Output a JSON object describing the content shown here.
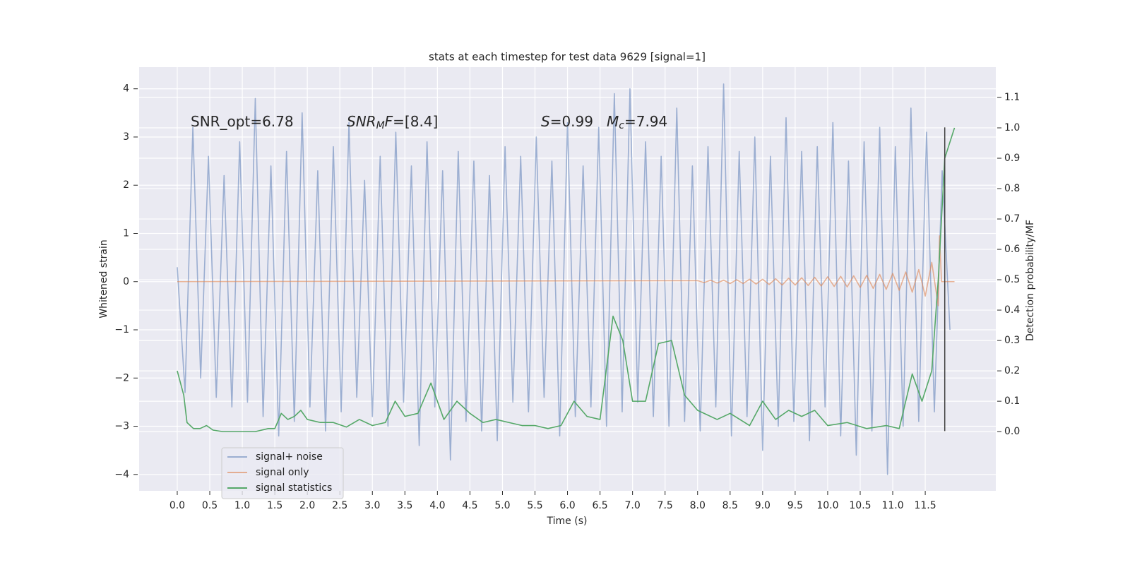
{
  "chart_data": {
    "type": "line",
    "title": "stats at each timestep for test data 9629 [signal=1]",
    "xlabel": "Time (s)",
    "ylabel": "Whitened strain",
    "y2label": "Detection probability/MF",
    "xlim": [
      -0.586,
      12.585
    ],
    "ylim": [
      -4.34,
      4.45
    ],
    "y2lim": [
      -0.195,
      1.2
    ],
    "xticks": [
      {
        "value": 0,
        "label": "0.0"
      },
      0.5,
      {
        "value": 1,
        "label": "1.0"
      },
      1.5,
      {
        "value": 2,
        "label": "2.0"
      },
      2.5,
      {
        "value": 3,
        "label": "3.0"
      },
      3.5,
      {
        "value": 4,
        "label": "4.0"
      },
      4.5,
      {
        "value": 5,
        "label": "5.0"
      },
      5.5,
      {
        "value": 6,
        "label": "6.0"
      },
      6.5,
      {
        "value": 7,
        "label": "7.0"
      },
      7.5,
      {
        "value": 8,
        "label": "8.0"
      },
      8.5,
      {
        "value": 9,
        "label": "9.0"
      },
      9.5,
      {
        "value": 10,
        "label": "10.0"
      },
      10.5,
      {
        "value": 11,
        "label": "11.0"
      },
      11.5
    ],
    "yticks": [
      {
        "value": -4,
        "label": "−4"
      },
      {
        "value": -3,
        "label": "−3"
      },
      {
        "value": -2,
        "label": "−2"
      },
      {
        "value": -1,
        "label": "−1"
      },
      0,
      1,
      2,
      3,
      4
    ],
    "y2ticks": [
      {
        "value": 0,
        "label": "0.0"
      },
      0.1,
      0.2,
      0.3,
      0.4,
      0.5,
      0.6,
      0.7,
      0.8,
      0.9,
      {
        "value": 1,
        "label": "1.0"
      },
      1.1
    ],
    "grid": true,
    "legend": "lower left",
    "annotations": [
      {
        "parts": [
          {
            "text": "SNR_opt=6.78"
          }
        ]
      },
      {
        "parts": [
          {
            "text": "SNR",
            "italic": true
          },
          {
            "text": "M",
            "italic": true,
            "sub": true
          },
          {
            "text": "F",
            "italic": true
          },
          {
            "text": "=[8.4]"
          }
        ]
      },
      {
        "parts": [
          {
            "text": "S",
            "italic": true
          },
          {
            "text": "=0.99"
          }
        ]
      },
      {
        "parts": [
          {
            "text": "M",
            "italic": true
          },
          {
            "text": "c",
            "italic": true,
            "sub": true
          },
          {
            "text": "=7.94"
          }
        ]
      }
    ],
    "vline": {
      "x": 11.8,
      "y": [
        -3.1,
        3.2
      ],
      "color": "#404040"
    },
    "series": [
      {
        "name": "signal+ noise",
        "color": "#4c72b0",
        "opacity": 0.5,
        "x": [
          0,
          0.12,
          0.24,
          0.36,
          0.48,
          0.6,
          0.72,
          0.84,
          0.96,
          1.08,
          1.2,
          1.32,
          1.44,
          1.56,
          1.68,
          1.8,
          1.92,
          2.04,
          2.16,
          2.28,
          2.4,
          2.52,
          2.64,
          2.76,
          2.88,
          3.0,
          3.12,
          3.24,
          3.36,
          3.48,
          3.6,
          3.72,
          3.84,
          3.96,
          4.08,
          4.2,
          4.32,
          4.44,
          4.56,
          4.68,
          4.8,
          4.92,
          5.04,
          5.16,
          5.28,
          5.4,
          5.52,
          5.64,
          5.76,
          5.88,
          6.0,
          6.12,
          6.24,
          6.36,
          6.48,
          6.6,
          6.72,
          6.84,
          6.96,
          7.08,
          7.2,
          7.32,
          7.44,
          7.56,
          7.68,
          7.8,
          7.92,
          8.04,
          8.16,
          8.28,
          8.4,
          8.52,
          8.64,
          8.76,
          8.88,
          9.0,
          9.12,
          9.24,
          9.36,
          9.48,
          9.6,
          9.72,
          9.84,
          9.96,
          10.08,
          10.2,
          10.32,
          10.44,
          10.56,
          10.68,
          10.8,
          10.92,
          11.04,
          11.16,
          11.28,
          11.4,
          11.52,
          11.64,
          11.76,
          11.88
        ],
        "values": [
          0.3,
          -2.3,
          3.2,
          -2.0,
          2.6,
          -2.4,
          2.2,
          -2.6,
          2.9,
          -2.5,
          3.8,
          -2.8,
          2.4,
          -3.2,
          2.7,
          -2.9,
          3.5,
          -2.6,
          2.3,
          -3.1,
          2.8,
          -2.7,
          3.3,
          -2.4,
          2.1,
          -2.8,
          2.6,
          -3.0,
          3.1,
          -2.5,
          2.4,
          -3.4,
          2.9,
          -2.6,
          2.3,
          -3.7,
          2.7,
          -2.9,
          2.5,
          -3.1,
          2.2,
          -3.3,
          2.8,
          -2.5,
          2.6,
          -2.7,
          3.0,
          -2.4,
          2.5,
          -3.2,
          3.3,
          -2.8,
          2.4,
          -2.6,
          3.2,
          -3.0,
          3.9,
          -2.7,
          4.0,
          -2.5,
          2.9,
          -2.8,
          2.6,
          -3.0,
          3.6,
          -2.9,
          2.4,
          -3.1,
          2.8,
          -2.6,
          4.1,
          -3.2,
          2.7,
          -2.8,
          3.0,
          -3.5,
          2.6,
          -3.0,
          3.4,
          -2.9,
          2.7,
          -3.3,
          2.8,
          -2.6,
          3.3,
          -3.2,
          2.5,
          -3.6,
          2.9,
          -3.1,
          3.2,
          -4.0,
          2.8,
          -3.0,
          3.6,
          -2.9,
          3.1,
          -2.7,
          2.3,
          -1.0
        ]
      },
      {
        "name": "signal only",
        "color": "#dd8452",
        "opacity": 0.6,
        "x": [
          0,
          8.0,
          8.1,
          8.2,
          8.3,
          8.4,
          8.5,
          8.6,
          8.7,
          8.8,
          8.9,
          9.0,
          9.1,
          9.2,
          9.3,
          9.4,
          9.5,
          9.6,
          9.7,
          9.8,
          9.9,
          10.0,
          10.1,
          10.2,
          10.3,
          10.4,
          10.5,
          10.6,
          10.7,
          10.8,
          10.9,
          11.0,
          11.1,
          11.2,
          11.3,
          11.4,
          11.5,
          11.6,
          11.7,
          11.72,
          11.75,
          11.95
        ],
        "values": [
          0,
          0.02,
          -0.02,
          0.03,
          -0.03,
          0.03,
          -0.04,
          0.04,
          -0.04,
          0.05,
          -0.05,
          0.05,
          -0.06,
          0.06,
          -0.07,
          0.07,
          -0.07,
          0.08,
          -0.08,
          0.09,
          -0.09,
          0.1,
          -0.1,
          0.11,
          -0.11,
          0.12,
          -0.12,
          0.13,
          -0.14,
          0.15,
          -0.16,
          0.17,
          -0.18,
          0.2,
          -0.22,
          0.25,
          -0.3,
          0.4,
          -0.5,
          0.95,
          0,
          0
        ]
      },
      {
        "name": "signal statistics",
        "color": "#55a868",
        "opacity": 1,
        "axis": "y2",
        "x": [
          0,
          0.1,
          0.15,
          0.25,
          0.35,
          0.45,
          0.55,
          0.7,
          0.9,
          1.0,
          1.2,
          1.4,
          1.5,
          1.6,
          1.7,
          1.8,
          1.9,
          2.0,
          2.2,
          2.4,
          2.6,
          2.8,
          3.0,
          3.2,
          3.35,
          3.5,
          3.7,
          3.9,
          4.1,
          4.3,
          4.5,
          4.7,
          4.9,
          5.1,
          5.3,
          5.5,
          5.7,
          5.9,
          6.1,
          6.3,
          6.5,
          6.7,
          6.85,
          7.0,
          7.2,
          7.4,
          7.6,
          7.8,
          8.0,
          8.3,
          8.5,
          8.8,
          9.0,
          9.2,
          9.4,
          9.6,
          9.8,
          10.0,
          10.3,
          10.6,
          10.9,
          11.1,
          11.3,
          11.45,
          11.6,
          11.7,
          11.8,
          11.95
        ],
        "values": [
          0.2,
          0.12,
          0.03,
          0.01,
          0.01,
          0.02,
          0.005,
          0,
          0,
          0,
          0,
          0.01,
          0.01,
          0.06,
          0.04,
          0.05,
          0.07,
          0.04,
          0.03,
          0.03,
          0.015,
          0.04,
          0.02,
          0.03,
          0.1,
          0.05,
          0.06,
          0.16,
          0.04,
          0.1,
          0.06,
          0.03,
          0.04,
          0.03,
          0.02,
          0.02,
          0.01,
          0.02,
          0.1,
          0.05,
          0.04,
          0.38,
          0.3,
          0.1,
          0.1,
          0.29,
          0.3,
          0.12,
          0.07,
          0.04,
          0.06,
          0.02,
          0.1,
          0.04,
          0.07,
          0.05,
          0.07,
          0.02,
          0.03,
          0.01,
          0.02,
          0.01,
          0.19,
          0.1,
          0.2,
          0.5,
          0.9,
          1.0
        ]
      }
    ]
  }
}
